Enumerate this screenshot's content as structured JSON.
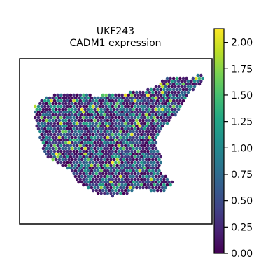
{
  "chart_data": {
    "type": "heatmap",
    "title": "UKF243",
    "subtitle": "CADM1 expression",
    "xlabel": "",
    "ylabel": "",
    "colormap": "viridis",
    "colorbar": {
      "vmin": 0.0,
      "vmax": 2.13,
      "ticks": [
        0.0,
        0.25,
        0.5,
        0.75,
        1.0,
        1.25,
        1.5,
        1.75,
        2.0
      ],
      "tick_labels": [
        "0.00",
        "0.25",
        "0.50",
        "0.75",
        "1.00",
        "1.25",
        "1.50",
        "1.75",
        "2.00"
      ],
      "placement": "right"
    },
    "grid": false,
    "tissue_region": {
      "description": "spatial transcriptomics spots on hexagonal lattice, tissue outline in data units (0-100 x, 0-100 y)",
      "outline": [
        [
          5,
          26
        ],
        [
          13,
          20
        ],
        [
          20,
          18
        ],
        [
          30,
          18
        ],
        [
          38,
          20
        ],
        [
          46,
          19
        ],
        [
          54,
          18
        ],
        [
          62,
          17
        ],
        [
          70,
          15
        ],
        [
          78,
          8
        ],
        [
          86,
          6
        ],
        [
          92,
          8
        ],
        [
          96,
          5
        ],
        [
          100,
          6
        ],
        [
          99,
          10
        ],
        [
          95,
          14
        ],
        [
          90,
          20
        ],
        [
          86,
          30
        ],
        [
          80,
          38
        ],
        [
          76,
          42
        ],
        [
          72,
          50
        ],
        [
          74,
          58
        ],
        [
          76,
          64
        ],
        [
          74,
          70
        ],
        [
          78,
          76
        ],
        [
          82,
          80
        ],
        [
          78,
          86
        ],
        [
          70,
          86
        ],
        [
          62,
          84
        ],
        [
          56,
          88
        ],
        [
          48,
          90
        ],
        [
          40,
          88
        ],
        [
          34,
          84
        ],
        [
          28,
          80
        ],
        [
          24,
          72
        ],
        [
          18,
          68
        ],
        [
          10,
          62
        ],
        [
          8,
          52
        ],
        [
          6,
          42
        ],
        [
          4,
          34
        ]
      ],
      "value_distribution": "mostly 0.0-1.3 with scattered high spots up to ~2.1"
    }
  }
}
